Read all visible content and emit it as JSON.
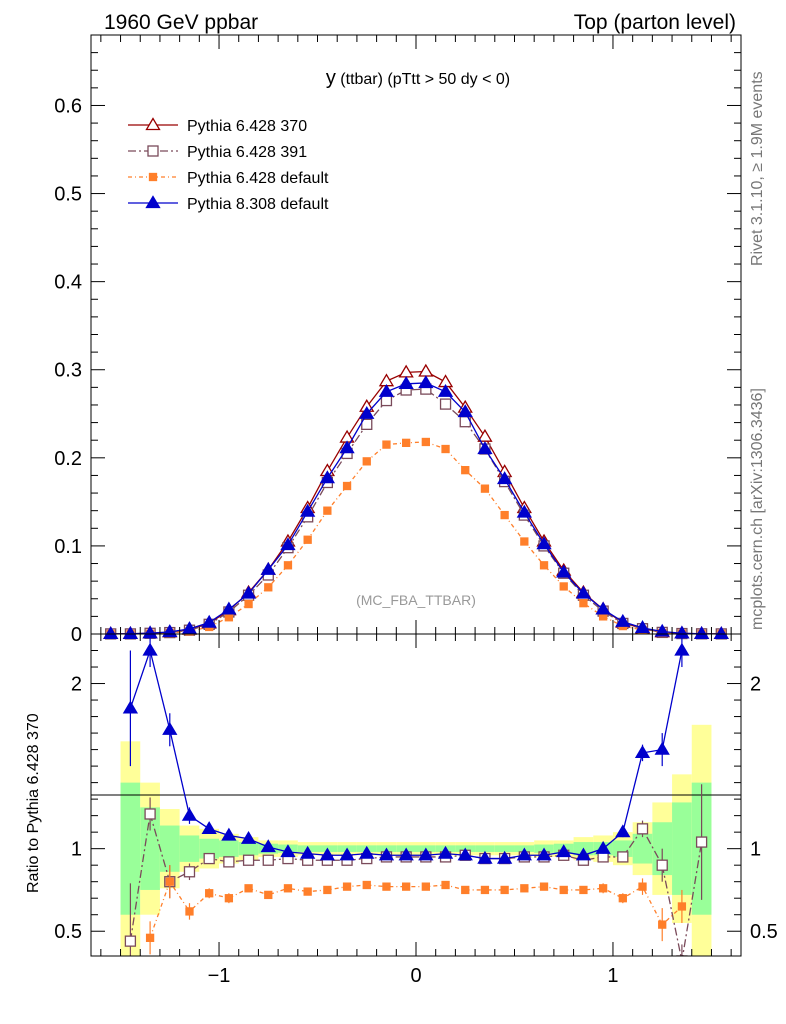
{
  "header": {
    "left": "1960 GeV ppbar",
    "right": "Top (parton level)"
  },
  "side_labels": {
    "rivet": "Rivet 3.1.10, ≥ 1.9M events",
    "mcplots": "mcplots.cern.ch [arXiv:1306.3436]"
  },
  "chart_data": {
    "type": "line",
    "title": "y (ttbar) (pTtt > 50 dy < 0)",
    "title_main": "y",
    "title_sub": " (ttbar) (pTtt > 50 dy < 0)",
    "watermark": "(MC_FBA_TTBAR)",
    "x": [
      -1.55,
      -1.45,
      -1.35,
      -1.25,
      -1.15,
      -1.05,
      -0.95,
      -0.85,
      -0.75,
      -0.65,
      -0.55,
      -0.45,
      -0.35,
      -0.25,
      -0.15,
      -0.05,
      0.05,
      0.15,
      0.25,
      0.35,
      0.45,
      0.55,
      0.65,
      0.75,
      0.85,
      0.95,
      1.05,
      1.15,
      1.25,
      1.35,
      1.45,
      1.55
    ],
    "xlim": [
      -1.65,
      1.65
    ],
    "main": {
      "ylim": [
        0,
        0.68
      ],
      "yticks": [
        0,
        0.1,
        0.2,
        0.3,
        0.4,
        0.5,
        0.6
      ],
      "yticklabels": [
        "0",
        "0.1",
        "0.2",
        "0.3",
        "0.4",
        "0.5",
        "0.6"
      ]
    },
    "ratio": {
      "ylabel": "Ratio to Pythia 6.428 370",
      "ylim": [
        0.35,
        2.3
      ],
      "yticks": [
        0.5,
        1,
        2
      ],
      "yticklabels": [
        "0.5",
        "1",
        "2"
      ]
    },
    "xticks": [
      -1,
      0,
      1
    ],
    "xticklabels": [
      "−1",
      "0",
      "1"
    ],
    "series": [
      {
        "name": "Pythia 6.428 370",
        "color": "#990000",
        "marker": "triangle-open",
        "dash": "",
        "values": [
          0.0001,
          0.0002,
          0.0008,
          0.002,
          0.005,
          0.012,
          0.027,
          0.047,
          0.073,
          0.105,
          0.143,
          0.185,
          0.223,
          0.258,
          0.287,
          0.297,
          0.298,
          0.286,
          0.257,
          0.224,
          0.184,
          0.143,
          0.105,
          0.072,
          0.047,
          0.028,
          0.013,
          0.006,
          0.002,
          0.0007,
          0.0002,
          0.0001
        ],
        "ratio": [
          null,
          null,
          null,
          null,
          null,
          null,
          null,
          null,
          null,
          null,
          null,
          null,
          null,
          null,
          null,
          null,
          null,
          null,
          null,
          null,
          null,
          null,
          null,
          null,
          null,
          null,
          null,
          null,
          null,
          null,
          null,
          null
        ]
      },
      {
        "name": "Pythia 6.428 391",
        "color": "#7a4a5a",
        "marker": "square-open",
        "dash": "8,3,2,3",
        "values": [
          0.0001,
          0.0001,
          0.0008,
          0.0016,
          0.0043,
          0.011,
          0.025,
          0.044,
          0.067,
          0.098,
          0.133,
          0.172,
          0.205,
          0.238,
          0.265,
          0.277,
          0.278,
          0.261,
          0.241,
          0.21,
          0.173,
          0.135,
          0.1,
          0.069,
          0.044,
          0.026,
          0.012,
          0.006,
          0.0018,
          0.0005,
          0.0002,
          0.0001
        ],
        "ratio": [
          null,
          0.44,
          1.21,
          0.8,
          0.86,
          0.94,
          0.92,
          0.93,
          0.93,
          0.94,
          0.93,
          0.93,
          0.93,
          0.94,
          0.95,
          0.95,
          0.95,
          0.95,
          0.96,
          0.94,
          0.94,
          0.95,
          0.95,
          0.96,
          0.93,
          0.95,
          0.95,
          1.12,
          0.9,
          0.32,
          1.04,
          null
        ]
      },
      {
        "name": "Pythia 6.428 default",
        "color": "#ff7f2a",
        "marker": "square-filled",
        "dash": "4,3,1,3",
        "values": [
          0.0001,
          0.0001,
          0.0004,
          0.0012,
          0.003,
          0.008,
          0.019,
          0.034,
          0.053,
          0.078,
          0.107,
          0.14,
          0.168,
          0.196,
          0.215,
          0.217,
          0.218,
          0.21,
          0.186,
          0.165,
          0.135,
          0.105,
          0.078,
          0.054,
          0.035,
          0.02,
          0.009,
          0.0045,
          0.0012,
          0.0004,
          0.0001,
          0.0001
        ],
        "ratio": [
          null,
          null,
          0.46,
          0.8,
          0.62,
          0.73,
          0.7,
          0.76,
          0.72,
          0.76,
          0.74,
          0.75,
          0.77,
          0.78,
          0.77,
          0.77,
          0.77,
          0.78,
          0.75,
          0.75,
          0.75,
          0.76,
          0.77,
          0.75,
          0.75,
          0.76,
          0.7,
          0.77,
          0.54,
          0.65,
          null,
          null
        ]
      },
      {
        "name": "Pythia 8.308 default",
        "color": "#0000cc",
        "marker": "triangle-filled",
        "dash": "",
        "values": [
          0.0001,
          0.0002,
          0.0009,
          0.0024,
          0.0058,
          0.013,
          0.028,
          0.046,
          0.073,
          0.101,
          0.139,
          0.177,
          0.211,
          0.25,
          0.275,
          0.284,
          0.285,
          0.275,
          0.252,
          0.21,
          0.176,
          0.138,
          0.102,
          0.07,
          0.046,
          0.028,
          0.014,
          0.007,
          0.0028,
          0.0008,
          0.0002,
          0.0001
        ],
        "ratio": [
          null,
          1.85,
          2.2,
          1.72,
          1.2,
          1.12,
          1.08,
          1.06,
          1.01,
          0.98,
          0.97,
          0.96,
          0.96,
          0.97,
          0.96,
          0.96,
          0.96,
          0.97,
          0.96,
          0.94,
          0.94,
          0.96,
          0.96,
          0.98,
          0.96,
          1.0,
          1.1,
          1.58,
          1.6,
          2.2,
          null,
          null
        ]
      }
    ],
    "ratio_errors": [
      0,
      0.35,
      0.1,
      0.1,
      0.05,
      0.03,
      0.03,
      0.02,
      0.02,
      0.02,
      0.02,
      0.01,
      0.01,
      0.01,
      0.01,
      0.01,
      0.01,
      0.01,
      0.01,
      0.01,
      0.01,
      0.01,
      0.02,
      0.02,
      0.02,
      0.03,
      0.03,
      0.05,
      0.1,
      0.1,
      0.35,
      0
    ],
    "bands": {
      "yellow": [
        0,
        0.65,
        0.4,
        0.24,
        0.14,
        0.12,
        0.09,
        0.07,
        0.05,
        0.05,
        0.04,
        0.04,
        0.04,
        0.04,
        0.04,
        0.04,
        0.04,
        0.04,
        0.04,
        0.04,
        0.04,
        0.04,
        0.05,
        0.05,
        0.07,
        0.08,
        0.1,
        0.16,
        0.28,
        0.45,
        0.75,
        0
      ],
      "green": [
        0,
        0.4,
        0.25,
        0.14,
        0.08,
        0.06,
        0.05,
        0.04,
        0.03,
        0.025,
        0.02,
        0.02,
        0.02,
        0.02,
        0.02,
        0.02,
        0.02,
        0.02,
        0.02,
        0.02,
        0.02,
        0.02,
        0.025,
        0.03,
        0.04,
        0.04,
        0.05,
        0.09,
        0.16,
        0.28,
        0.4,
        0
      ]
    }
  }
}
